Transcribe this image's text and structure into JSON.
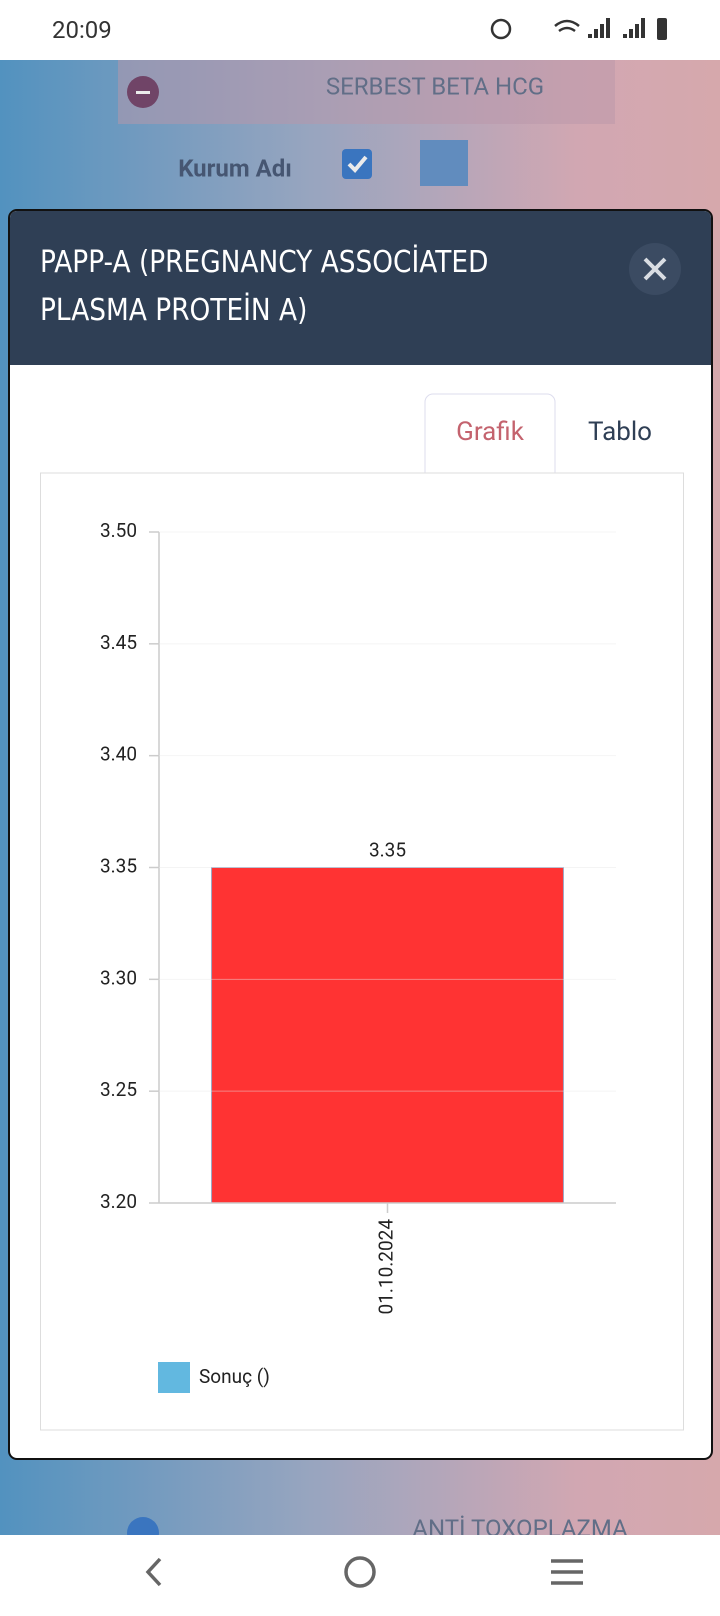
{
  "status_bar": {
    "time": "20:09"
  },
  "background": {
    "card_title": "SERBEST BETA HCG",
    "institution_label": "Kurum Adı",
    "next_card_title": "ANTİ TOXOPLAZMA"
  },
  "modal": {
    "title": "PAPP-A (PREGNANCY ASSOCİATED PLASMA PROTEİN A)",
    "tabs": [
      "Grafik",
      "Tablo"
    ]
  },
  "chart_data": {
    "type": "bar",
    "categories": [
      "01.10.2024"
    ],
    "series": [
      {
        "name": "Sonuç ()",
        "color": "#ff3333",
        "values": [
          3.35
        ]
      }
    ],
    "legend_color": "#62b8e0",
    "ylim": [
      3.2,
      3.5
    ],
    "yticks": [
      {
        "value": 3.2,
        "label": "3.20"
      },
      {
        "value": 3.25,
        "label": "3.25"
      },
      {
        "value": 3.3,
        "label": "3.30"
      },
      {
        "value": 3.35,
        "label": "3.35"
      },
      {
        "value": 3.4,
        "label": "3.40"
      },
      {
        "value": 3.45,
        "label": "3.45"
      },
      {
        "value": 3.5,
        "label": "3.50"
      }
    ],
    "grid": true,
    "legend": "bottom-left"
  }
}
